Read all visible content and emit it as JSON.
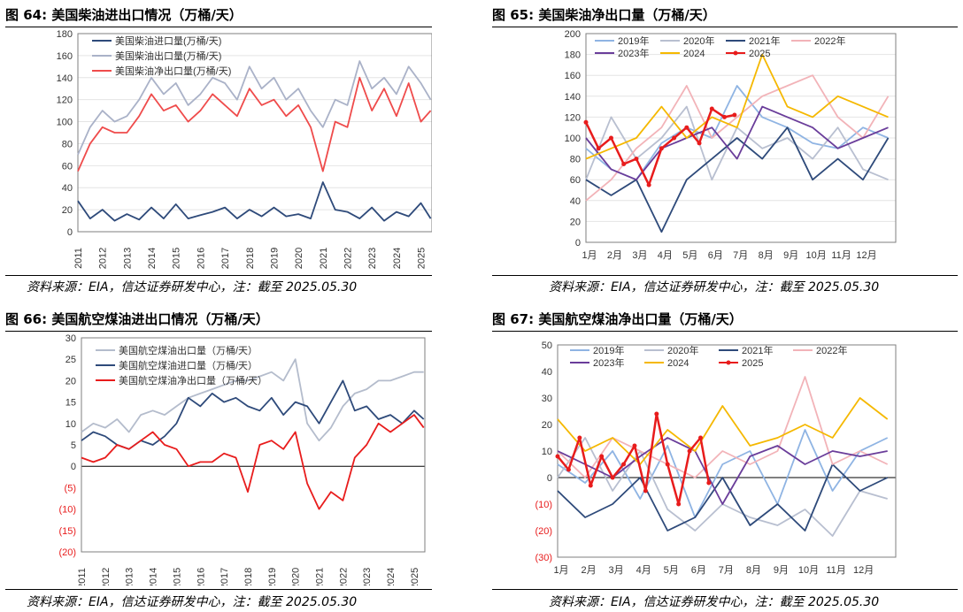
{
  "panels": [
    {
      "title": "图 64:  美国柴油进出口情况（万桶/天）",
      "source": "资料来源：EIA，信达证券研发中心，注：截至 2025.05.30",
      "chart_data": {
        "type": "line",
        "ylim": [
          0,
          180
        ],
        "yticks": [
          "0",
          "20",
          "40",
          "60",
          "80",
          "100",
          "120",
          "140",
          "160",
          "180"
        ],
        "xlabels": [
          "2011",
          "2012",
          "2013",
          "2014",
          "2015",
          "2016",
          "2017",
          "2018",
          "2019",
          "2020",
          "2021",
          "2022",
          "2023",
          "2024",
          "2025"
        ],
        "xlim": [
          2011,
          2025.45
        ],
        "series": [
          {
            "name": "美国柴油进口量(万桶/天)",
            "color": "#2e4a7a",
            "x": [
              2011,
              2011.5,
              2012,
              2012.5,
              2013,
              2013.5,
              2014,
              2014.5,
              2015,
              2015.5,
              2016,
              2016.5,
              2017,
              2017.5,
              2018,
              2018.5,
              2019,
              2019.5,
              2020,
              2020.5,
              2021,
              2021.5,
              2022,
              2022.5,
              2023,
              2023.5,
              2024,
              2024.5,
              2025,
              2025.4
            ],
            "y": [
              28,
              12,
              20,
              10,
              16,
              11,
              22,
              12,
              25,
              12,
              15,
              18,
              22,
              12,
              20,
              14,
              22,
              14,
              16,
              12,
              45,
              20,
              18,
              12,
              22,
              10,
              18,
              14,
              26,
              12
            ]
          },
          {
            "name": "美国柴油出口量(万桶/天)",
            "color": "#aab2c8",
            "x": [
              2011,
              2011.5,
              2012,
              2012.5,
              2013,
              2013.5,
              2014,
              2014.5,
              2015,
              2015.5,
              2016,
              2016.5,
              2017,
              2017.5,
              2018,
              2018.5,
              2019,
              2019.5,
              2020,
              2020.5,
              2021,
              2021.5,
              2022,
              2022.5,
              2023,
              2023.5,
              2024,
              2024.5,
              2025,
              2025.4
            ],
            "y": [
              70,
              95,
              110,
              100,
              105,
              120,
              140,
              125,
              135,
              115,
              125,
              140,
              135,
              120,
              150,
              130,
              140,
              120,
              130,
              110,
              95,
              120,
              115,
              155,
              130,
              140,
              125,
              150,
              135,
              120
            ]
          },
          {
            "name": "美国柴油净出口量(万桶/天)",
            "color": "#ef4b4b",
            "x": [
              2011,
              2011.5,
              2012,
              2012.5,
              2013,
              2013.5,
              2014,
              2014.5,
              2015,
              2015.5,
              2016,
              2016.5,
              2017,
              2017.5,
              2018,
              2018.5,
              2019,
              2019.5,
              2020,
              2020.5,
              2021,
              2021.5,
              2022,
              2022.5,
              2023,
              2023.5,
              2024,
              2024.5,
              2025,
              2025.4
            ],
            "y": [
              55,
              80,
              95,
              90,
              90,
              105,
              125,
              110,
              115,
              100,
              110,
              125,
              115,
              105,
              130,
              115,
              120,
              105,
              115,
              95,
              55,
              100,
              95,
              140,
              110,
              130,
              105,
              135,
              100,
              110
            ]
          }
        ]
      }
    },
    {
      "title": "图 65:  美国柴油净出口量（万桶/天）",
      "source": "资料来源：EIA，信达证券研发中心，注：截至 2025.05.30",
      "chart_data": {
        "type": "line",
        "ylim": [
          0,
          200
        ],
        "yticks": [
          "0",
          "20",
          "40",
          "60",
          "80",
          "100",
          "120",
          "140",
          "160",
          "180",
          "200"
        ],
        "xlabels": [
          "1月",
          "2月",
          "3月",
          "4月",
          "5月",
          "6月",
          "7月",
          "8月",
          "9月",
          "10月",
          "11月",
          "12月"
        ],
        "xlim": [
          0,
          12.3
        ],
        "series": [
          {
            "name": "2019年",
            "color": "#8fb4e3",
            "x": [
              0,
              1,
              2,
              3,
              4,
              5,
              6,
              7,
              8,
              9,
              10,
              11,
              12
            ],
            "y": [
              90,
              70,
              60,
              95,
              110,
              100,
              150,
              120,
              110,
              95,
              90,
              110,
              100
            ]
          },
          {
            "name": "2020年",
            "color": "#b8bfd0",
            "x": [
              0,
              1,
              2,
              3,
              4,
              5,
              6,
              7,
              8,
              9,
              10,
              11,
              12
            ],
            "y": [
              60,
              120,
              80,
              100,
              130,
              60,
              110,
              90,
              100,
              80,
              110,
              70,
              60
            ]
          },
          {
            "name": "2021年",
            "color": "#2e4a7a",
            "x": [
              0,
              1,
              2,
              3,
              4,
              5,
              6,
              7,
              8,
              9,
              10,
              11,
              12
            ],
            "y": [
              60,
              45,
              60,
              10,
              60,
              80,
              100,
              80,
              110,
              60,
              80,
              60,
              100
            ]
          },
          {
            "name": "2022年",
            "color": "#f2b3b8",
            "x": [
              0,
              1,
              2,
              3,
              4,
              5,
              6,
              7,
              8,
              9,
              10,
              11,
              12
            ],
            "y": [
              40,
              60,
              90,
              110,
              150,
              100,
              120,
              140,
              150,
              160,
              120,
              100,
              140
            ]
          },
          {
            "name": "2023年",
            "color": "#6a3d9a",
            "x": [
              0,
              1,
              2,
              3,
              4,
              5,
              6,
              7,
              8,
              9,
              10,
              11,
              12
            ],
            "y": [
              100,
              70,
              60,
              90,
              100,
              110,
              80,
              130,
              120,
              110,
              90,
              100,
              110
            ]
          },
          {
            "name": "2024",
            "color": "#f5b800",
            "x": [
              0,
              1,
              2,
              3,
              4,
              5,
              6,
              7,
              8,
              9,
              10,
              11,
              12
            ],
            "y": [
              80,
              90,
              100,
              130,
              100,
              120,
              110,
              180,
              130,
              120,
              140,
              130,
              120
            ]
          },
          {
            "name": "2025",
            "color": "#e81c1c",
            "marker": true,
            "x": [
              0,
              0.5,
              1,
              1.5,
              2,
              2.5,
              3,
              3.5,
              4,
              4.5,
              5,
              5.5,
              5.9
            ],
            "y": [
              115,
              90,
              100,
              75,
              80,
              55,
              90,
              100,
              110,
              95,
              128,
              120,
              122
            ]
          }
        ]
      }
    },
    {
      "title": "图 66:  美国航空煤油进出口情况（万桶/天）",
      "source": "资料来源：EIA，信达证券研发中心，注：截至 2025.05.30",
      "chart_data": {
        "type": "line",
        "ylim": [
          -20,
          30
        ],
        "yticks": [
          "(20)",
          "(15)",
          "(10)",
          "(5)",
          "0",
          "5",
          "10",
          "15",
          "20",
          "25",
          "30"
        ],
        "xlabels": [
          "2011",
          "2012",
          "2013",
          "2014",
          "2015",
          "2016",
          "2017",
          "2018",
          "2019",
          "2020",
          "2021",
          "2022",
          "2023",
          "2024",
          "2025"
        ],
        "xlim": [
          2011,
          2025.45
        ],
        "series": [
          {
            "name": "美国航空煤油出口量（万桶/天）",
            "color": "#b4bccc",
            "x": [
              2011,
              2011.5,
              2012,
              2012.5,
              2013,
              2013.5,
              2014,
              2014.5,
              2015,
              2015.5,
              2016,
              2016.5,
              2017,
              2017.5,
              2018,
              2018.5,
              2019,
              2019.5,
              2020,
              2020.5,
              2021,
              2021.5,
              2022,
              2022.5,
              2023,
              2023.5,
              2024,
              2024.5,
              2025,
              2025.4
            ],
            "y": [
              8,
              10,
              9,
              11,
              8,
              12,
              13,
              12,
              14,
              16,
              17,
              18,
              19,
              20,
              20,
              21,
              22,
              20,
              25,
              10,
              6,
              9,
              14,
              17,
              18,
              20,
              20,
              21,
              22,
              22
            ]
          },
          {
            "name": "美国航空煤油进口量（万桶/天）",
            "color": "#2e4a7a",
            "x": [
              2011,
              2011.5,
              2012,
              2012.5,
              2013,
              2013.5,
              2014,
              2014.5,
              2015,
              2015.5,
              2016,
              2016.5,
              2017,
              2017.5,
              2018,
              2018.5,
              2019,
              2019.5,
              2020,
              2020.5,
              2021,
              2021.5,
              2022,
              2022.5,
              2023,
              2023.5,
              2024,
              2024.5,
              2025,
              2025.4
            ],
            "y": [
              6,
              8,
              7,
              5,
              4,
              6,
              5,
              7,
              10,
              16,
              14,
              17,
              15,
              16,
              14,
              13,
              16,
              12,
              15,
              14,
              10,
              15,
              20,
              13,
              14,
              11,
              12,
              10,
              13,
              11
            ]
          },
          {
            "name": "美国航空煤油净出口量（万桶/天）",
            "color": "#e81c1c",
            "x": [
              2011,
              2011.5,
              2012,
              2012.5,
              2013,
              2013.5,
              2014,
              2014.5,
              2015,
              2015.5,
              2016,
              2016.5,
              2017,
              2017.5,
              2018,
              2018.5,
              2019,
              2019.5,
              2020,
              2020.5,
              2021,
              2021.5,
              2022,
              2022.5,
              2023,
              2023.5,
              2024,
              2024.5,
              2025,
              2025.4
            ],
            "y": [
              2,
              1,
              2,
              5,
              4,
              6,
              8,
              5,
              4,
              0,
              1,
              1,
              3,
              2,
              -6,
              5,
              6,
              4,
              8,
              -4,
              -10,
              -6,
              -8,
              2,
              5,
              10,
              8,
              10,
              12,
              9
            ]
          }
        ]
      }
    },
    {
      "title": "图 67:  美国航空煤油净出口量（万桶/天）",
      "source": "资料来源：EIA，信达证券研发中心，注：截至 2025.05.30",
      "chart_data": {
        "type": "line",
        "ylim": [
          -30,
          50
        ],
        "yticks": [
          "(30)",
          "(20)",
          "(10)",
          "0",
          "10",
          "20",
          "30",
          "40",
          "50"
        ],
        "xlabels": [
          "1月",
          "2月",
          "3月",
          "4月",
          "5月",
          "6月",
          "7月",
          "8月",
          "9月",
          "10月",
          "11月",
          "12月"
        ],
        "xlim": [
          0,
          12.3
        ],
        "series": [
          {
            "name": "2019年",
            "color": "#8fb4e3",
            "x": [
              0,
              1,
              2,
              3,
              4,
              5,
              6,
              7,
              8,
              9,
              10,
              11,
              12
            ],
            "y": [
              5,
              -2,
              10,
              -8,
              12,
              -15,
              5,
              10,
              -10,
              18,
              -5,
              10,
              15
            ]
          },
          {
            "name": "2020年",
            "color": "#b8bfd0",
            "x": [
              0,
              1,
              2,
              3,
              4,
              5,
              6,
              7,
              8,
              9,
              10,
              11,
              12
            ],
            "y": [
              0,
              15,
              -5,
              10,
              -12,
              -20,
              -10,
              -15,
              -18,
              -12,
              -22,
              -5,
              -8
            ]
          },
          {
            "name": "2021年",
            "color": "#2e4a7a",
            "x": [
              0,
              1,
              2,
              3,
              4,
              5,
              6,
              7,
              8,
              9,
              10,
              11,
              12
            ],
            "y": [
              -5,
              -15,
              -10,
              0,
              -20,
              -15,
              0,
              -18,
              -10,
              -20,
              5,
              -5,
              0
            ]
          },
          {
            "name": "2022年",
            "color": "#f2b3b8",
            "x": [
              0,
              1,
              2,
              3,
              4,
              5,
              6,
              7,
              8,
              9,
              10,
              11,
              12
            ],
            "y": [
              10,
              0,
              15,
              10,
              5,
              0,
              10,
              5,
              10,
              38,
              5,
              10,
              5
            ]
          },
          {
            "name": "2023年",
            "color": "#6a3d9a",
            "x": [
              0,
              1,
              2,
              3,
              4,
              5,
              6,
              7,
              8,
              9,
              10,
              11,
              12
            ],
            "y": [
              10,
              5,
              0,
              8,
              15,
              10,
              -10,
              8,
              12,
              5,
              10,
              8,
              10
            ]
          },
          {
            "name": "2024",
            "color": "#f5b800",
            "x": [
              0,
              1,
              2,
              3,
              4,
              5,
              6,
              7,
              8,
              9,
              10,
              11,
              12
            ],
            "y": [
              22,
              10,
              15,
              5,
              18,
              10,
              27,
              12,
              15,
              20,
              15,
              30,
              22
            ]
          },
          {
            "name": "2025",
            "color": "#e81c1c",
            "marker": true,
            "x": [
              0,
              0.4,
              0.8,
              1.2,
              1.6,
              2.0,
              2.4,
              2.8,
              3.2,
              3.6,
              4.0,
              4.4,
              4.8,
              5.2,
              5.5
            ],
            "y": [
              8,
              3,
              15,
              -3,
              8,
              0,
              5,
              12,
              -5,
              24,
              5,
              -10,
              10,
              15,
              -2
            ]
          }
        ]
      }
    }
  ]
}
